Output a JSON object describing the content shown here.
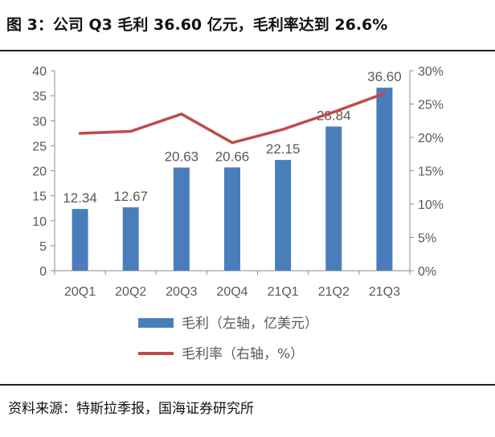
{
  "figure": {
    "title": "图 3：公司 Q3 毛利 36.60 亿元，毛利率达到 26.6%",
    "source": "资料来源：特斯拉季报，国海证券研究所"
  },
  "colors": {
    "bar": "#4a7ebb",
    "line": "#be4b48",
    "axis": "#8c8c8c",
    "text": "#595959"
  },
  "chart_data": {
    "type": "bar+line",
    "categories": [
      "20Q1",
      "20Q2",
      "20Q3",
      "20Q4",
      "21Q1",
      "21Q2",
      "21Q3"
    ],
    "series": [
      {
        "name": "毛利（左轴，亿美元）",
        "type": "bar",
        "axis": "left",
        "values": [
          12.34,
          12.67,
          20.63,
          20.66,
          22.15,
          28.84,
          36.6
        ],
        "labels": [
          "12.34",
          "12.67",
          "20.63",
          "20.66",
          "22.15",
          "28.84",
          "36.60"
        ]
      },
      {
        "name": "毛利率（右轴，%）",
        "type": "line",
        "axis": "right",
        "values": [
          20.6,
          20.9,
          23.5,
          19.2,
          21.2,
          23.8,
          26.6
        ]
      }
    ],
    "y_left": {
      "min": 0,
      "max": 40,
      "ticks": [
        0,
        5,
        10,
        15,
        20,
        25,
        30,
        35,
        40
      ]
    },
    "y_right": {
      "min": 0,
      "max": 30,
      "ticks": [
        "0%",
        "5%",
        "10%",
        "15%",
        "20%",
        "25%",
        "30%"
      ]
    },
    "legend_position": "bottom",
    "grid": false
  }
}
